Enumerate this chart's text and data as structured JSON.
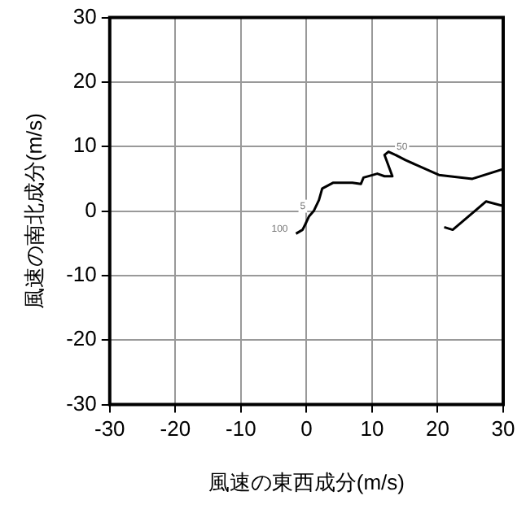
{
  "chart_data": {
    "type": "line",
    "xlabel": "風速の東西成分(m/s)",
    "ylabel": "風速の南北成分(m/s)",
    "series": [
      {
        "color": "#000000",
        "x": [
          -1.6,
          -0.6,
          -0.2,
          0.4,
          1.1,
          1.9,
          2.4,
          4.1,
          7.0,
          8.3,
          8.7,
          10.8,
          11.9,
          13.1,
          11.9,
          12.5,
          13.6,
          15.1,
          20.2,
          25.3,
          30,
          null,
          30,
          27.4,
          22.3,
          21
        ],
        "values": [
          -3.5,
          -2.9,
          -2.1,
          -0.8,
          0,
          1.7,
          3.5,
          4.4,
          4.4,
          4.2,
          5.2,
          5.8,
          5.4,
          5.4,
          8.7,
          9.2,
          8.7,
          7.9,
          5.6,
          5.0,
          6.5,
          null,
          0.8,
          1.5,
          -2.9,
          -2.5
        ]
      }
    ],
    "xlim": [
      -30,
      30
    ],
    "xticks": [
      -30,
      -20,
      -10,
      0,
      10,
      20,
      30
    ],
    "ylim": [
      -30,
      30
    ],
    "yticks": [
      -30,
      -20,
      -10,
      0,
      10,
      20,
      30
    ],
    "grid": true,
    "legend": false,
    "marker": "none",
    "line_style": "solid",
    "annotations": [
      {
        "text": "100",
        "x": -1.6,
        "y": -3.5
      },
      {
        "text": "5",
        "x": 1.1,
        "y": 0
      },
      {
        "text": "50",
        "x": 12.5,
        "y": 9.2
      }
    ]
  }
}
